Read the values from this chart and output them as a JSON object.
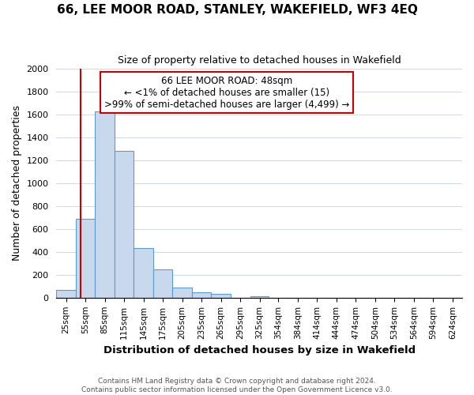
{
  "title": "66, LEE MOOR ROAD, STANLEY, WAKEFIELD, WF3 4EQ",
  "subtitle": "Size of property relative to detached houses in Wakefield",
  "xlabel": "Distribution of detached houses by size in Wakefield",
  "ylabel": "Number of detached properties",
  "bar_labels": [
    "25sqm",
    "55sqm",
    "85sqm",
    "115sqm",
    "145sqm",
    "175sqm",
    "205sqm",
    "235sqm",
    "265sqm",
    "295sqm",
    "325sqm",
    "354sqm",
    "384sqm",
    "414sqm",
    "444sqm",
    "474sqm",
    "504sqm",
    "534sqm",
    "564sqm",
    "594sqm",
    "624sqm"
  ],
  "bar_values": [
    65,
    690,
    1625,
    1280,
    435,
    248,
    90,
    50,
    30,
    0,
    15,
    0,
    0,
    0,
    0,
    0,
    0,
    0,
    0,
    0,
    0
  ],
  "bar_color": "#c9d9ed",
  "bar_edge_color": "#5b9bd5",
  "ylim": [
    0,
    2000
  ],
  "yticks": [
    0,
    200,
    400,
    600,
    800,
    1000,
    1200,
    1400,
    1600,
    1800,
    2000
  ],
  "property_line_x": 48,
  "property_line_color": "#cc0000",
  "annotation_title": "66 LEE MOOR ROAD: 48sqm",
  "annotation_line1": "← <1% of detached houses are smaller (15)",
  "annotation_line2": ">99% of semi-detached houses are larger (4,499) →",
  "annotation_box_color": "#ffffff",
  "annotation_border_color": "#cc0000",
  "footer_line1": "Contains HM Land Registry data © Crown copyright and database right 2024.",
  "footer_line2": "Contains public sector information licensed under the Open Government Licence v3.0.",
  "background_color": "#ffffff",
  "grid_color": "#d0d8e8"
}
